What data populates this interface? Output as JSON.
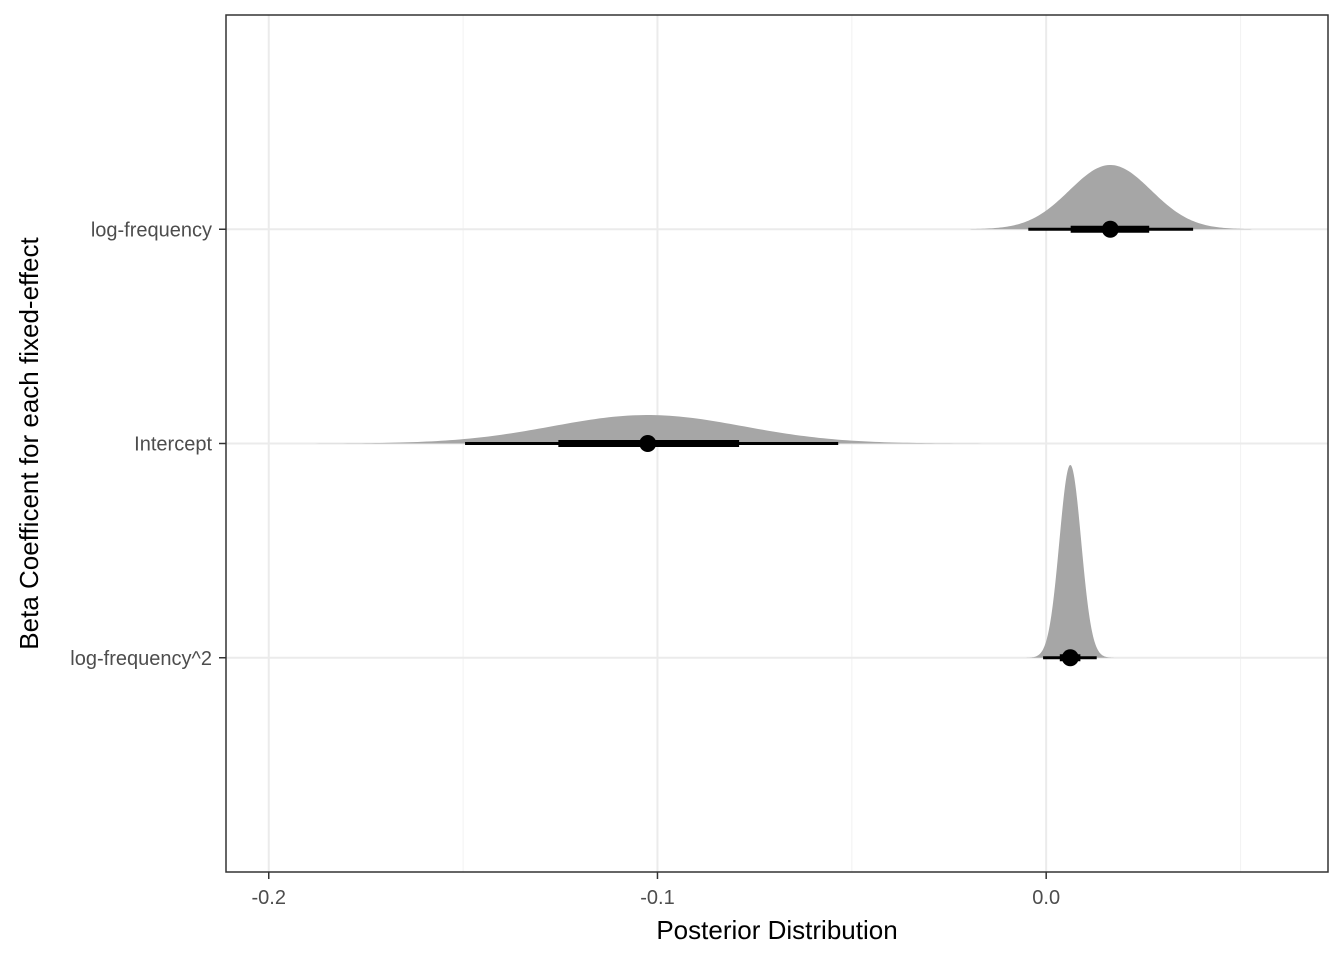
{
  "chart_data": {
    "type": "halfeye",
    "title": "",
    "xlabel": "Posterior Distribution",
    "ylabel": "Beta Coefficent for each fixed-effect",
    "xlim": [
      -0.211,
      0.0725
    ],
    "x_ticks": [
      -0.2,
      -0.1,
      0.0
    ],
    "x_tick_labels": [
      "-0.2",
      "-0.1",
      "0.0"
    ],
    "x_minor_ticks": [
      -0.15,
      -0.05,
      0.05
    ],
    "grid": true,
    "theme": "bw",
    "colors": {
      "density_fill": "#a6a6a6",
      "interval": "#000000",
      "grid": "#ebebeb",
      "panel_border": "#333333"
    },
    "categories": [
      "log-frequency^2",
      "Intercept",
      "log-frequency"
    ],
    "series": [
      {
        "name": "log-frequency",
        "median": 0.0165,
        "sd": 0.0105,
        "interval_66": [
          0.0063,
          0.0265
        ],
        "interval_95": [
          -0.0046,
          0.0378
        ],
        "support": [
          -0.0195,
          0.0528
        ],
        "density_height": 0.3
      },
      {
        "name": "Intercept",
        "median": -0.1025,
        "sd": 0.0245,
        "interval_66": [
          -0.1255,
          -0.079
        ],
        "interval_95": [
          -0.1495,
          -0.0535
        ],
        "support": [
          -0.1965,
          -0.0045
        ],
        "density_height": 0.133
      },
      {
        "name": "log-frequency^2",
        "median": 0.0062,
        "sd": 0.0028,
        "interval_66": [
          0.0035,
          0.0088
        ],
        "interval_95": [
          -0.0008,
          0.013
        ],
        "support": [
          -0.0065,
          0.0185
        ],
        "density_height": 0.9
      }
    ]
  }
}
